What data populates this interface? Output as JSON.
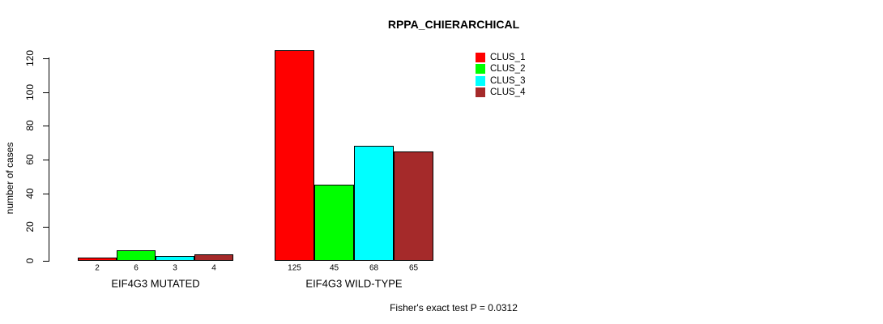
{
  "title": "RPPA_CHIERARCHICAL",
  "footer": "Fisher's exact test P = 0.0312",
  "chart_data": {
    "type": "bar",
    "title": "RPPA_CHIERARCHICAL",
    "xlabel": "",
    "ylabel": "number of cases",
    "ylim": [
      0,
      125
    ],
    "yticks": [
      0,
      20,
      40,
      60,
      80,
      100,
      120
    ],
    "grid": false,
    "legend_position": "top-right-inside",
    "categories": [
      "EIF4G3 MUTATED",
      "EIF4G3 WILD-TYPE"
    ],
    "series": [
      {
        "name": "CLUS_1",
        "color": "#FF0000",
        "values": [
          2,
          125
        ]
      },
      {
        "name": "CLUS_2",
        "color": "#00FF00",
        "values": [
          6,
          45
        ]
      },
      {
        "name": "CLUS_3",
        "color": "#00FFFF",
        "values": [
          3,
          68
        ]
      },
      {
        "name": "CLUS_4",
        "color": "#A52A2A",
        "values": [
          4,
          65
        ]
      }
    ],
    "bar_value_labels": [
      [
        "2",
        "6",
        "3",
        "4"
      ],
      [
        "125",
        "45",
        "68",
        "65"
      ]
    ],
    "annotation": "Fisher's exact test P = 0.0312"
  }
}
